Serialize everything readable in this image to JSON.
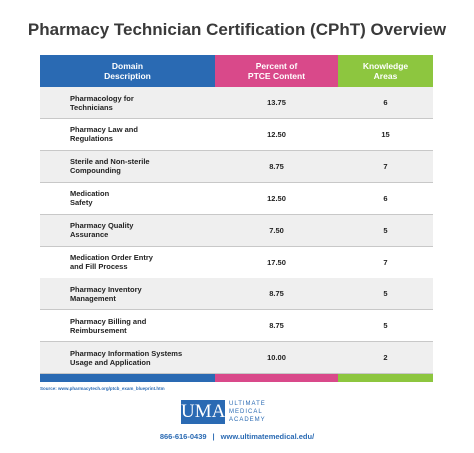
{
  "header": {
    "title": "Pharmacy Technician Certification (CPhT) Overview"
  },
  "table": {
    "columns": [
      [
        "Domain",
        "Description"
      ],
      [
        "Percent of",
        "PTCE Content"
      ],
      [
        "Knowledge",
        "Areas"
      ]
    ],
    "rows": [
      [
        [
          "Pharmacology for",
          "Technicians"
        ],
        "13.75",
        "6"
      ],
      [
        [
          "Pharmacy Law and",
          "Regulations"
        ],
        "12.50",
        "15"
      ],
      [
        [
          "Sterile and Non-sterile",
          "Compounding"
        ],
        "8.75",
        "7"
      ],
      [
        [
          "Medication",
          "Safety"
        ],
        "12.50",
        "6"
      ],
      [
        [
          "Pharmacy Quality",
          "Assurance"
        ],
        "7.50",
        "5"
      ],
      [
        [
          "Medication Order Entry",
          "and Fill Process"
        ],
        "17.50",
        "7"
      ],
      [
        [
          "Pharmacy Inventory",
          "Management"
        ],
        "8.75",
        "5"
      ],
      [
        [
          "Pharmacy Billing and",
          "Reimbursement"
        ],
        "8.75",
        "5"
      ],
      [
        [
          "Pharmacy Information Systems",
          "Usage and Application"
        ],
        "10.00",
        "2"
      ]
    ]
  },
  "footer": {
    "source": "Source: www.pharmacytech.org/ptcb_exam_blueprint.htm",
    "logo": "UMA",
    "logo_lines": [
      "ULTIMATE",
      "MEDICAL",
      "ACADEMY"
    ],
    "phone": "866-616-0439",
    "separator": "|",
    "website": "www.ultimatemedical.edu/"
  }
}
